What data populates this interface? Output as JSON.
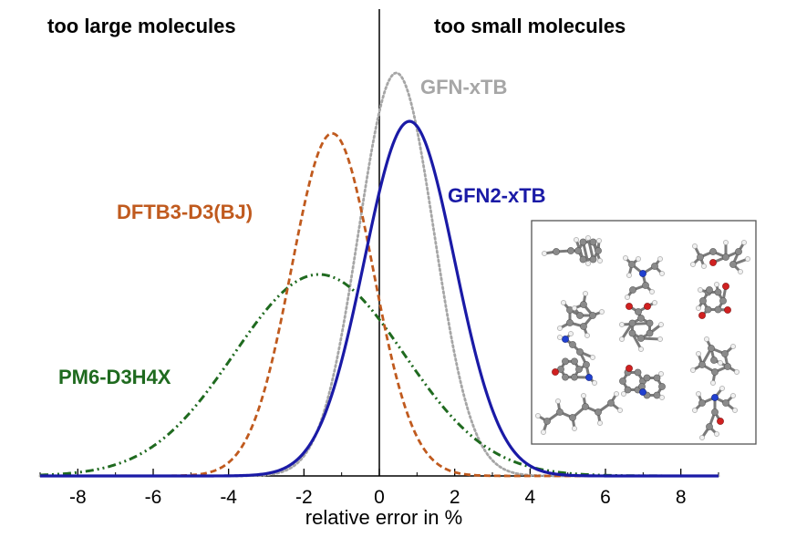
{
  "chart_data": {
    "type": "line",
    "title": "",
    "xlabel": "relative error in %",
    "ylabel": "",
    "xlim": [
      -9,
      9
    ],
    "ylim": [
      0,
      1.05
    ],
    "xticks": [
      -8,
      -6,
      -4,
      -2,
      0,
      2,
      4,
      6,
      8
    ],
    "region_labels": {
      "left": "too large molecules",
      "right": "too small molecules"
    },
    "series": [
      {
        "name": "GFN-xTB",
        "distribution": "gaussian",
        "mean": 0.45,
        "sd": 1.0,
        "peak": 1.0,
        "color": "#a6a6a6",
        "style": "dotted"
      },
      {
        "name": "GFN2-xTB",
        "distribution": "gaussian",
        "mean": 0.8,
        "sd": 1.2,
        "peak": 0.88,
        "color": "#1a1aa6",
        "style": "solid"
      },
      {
        "name": "DFTB3-D3(BJ)",
        "distribution": "gaussian",
        "mean": -1.25,
        "sd": 1.08,
        "peak": 0.85,
        "color": "#c05a1e",
        "style": "dashed"
      },
      {
        "name": "PM6-D3H4X",
        "distribution": "gaussian",
        "mean": -1.6,
        "sd": 2.25,
        "peak": 0.5,
        "color": "#1f6a1f",
        "style": "dashdotdot"
      }
    ]
  },
  "inset": {
    "caption": "",
    "atom_colors": {
      "carbon": "#8a8a8a",
      "hydrogen": "#f0f0f0",
      "oxygen": "#d02020",
      "nitrogen": "#2040d0"
    }
  }
}
